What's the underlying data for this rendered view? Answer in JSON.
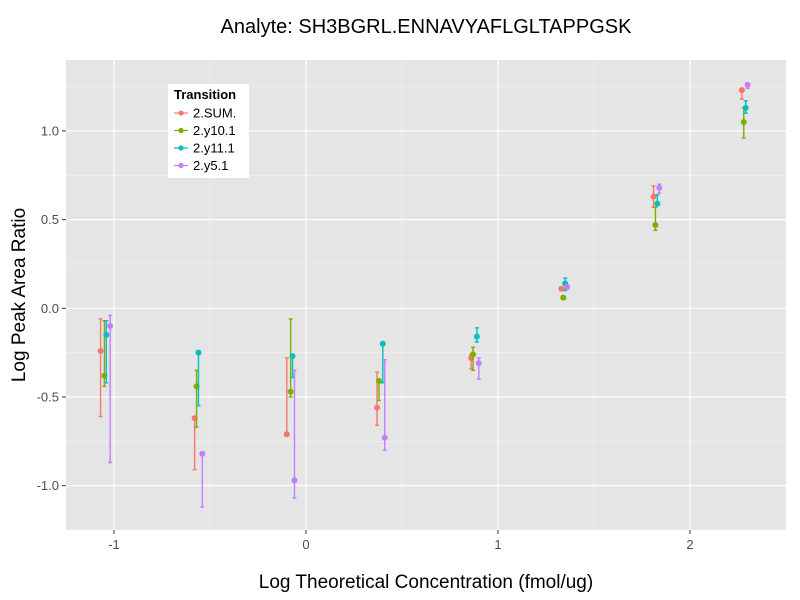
{
  "chart_data": {
    "type": "scatter",
    "title": "Analyte: SH3BGRL.ENNAVYAFLGLTAPPGSK",
    "xlabel": "Log Theoretical Concentration (fmol/ug)",
    "ylabel": "Log Peak Area Ratio",
    "xlim": [
      -1.25,
      2.5
    ],
    "ylim": [
      -1.25,
      1.4
    ],
    "x_ticks": [
      -1,
      0,
      1,
      2
    ],
    "x_tick_labels": [
      "-1",
      "0",
      "1",
      "2"
    ],
    "y_ticks": [
      -1.0,
      -0.5,
      0.0,
      0.5,
      1.0
    ],
    "y_tick_labels": [
      "-1.0",
      "-0.5",
      "0.0",
      "0.5",
      "1.0"
    ],
    "grid": true,
    "legend": {
      "title": "Transition",
      "placement": "top-left"
    },
    "error_bars": true,
    "series": [
      {
        "name": "2.SUM.",
        "color": "#F8766D",
        "points": [
          {
            "x": -1.07,
            "y": -0.24,
            "low": -0.61,
            "high": -0.06
          },
          {
            "x": -0.58,
            "y": -0.62,
            "low": -0.91,
            "high": -0.61
          },
          {
            "x": -0.1,
            "y": -0.71,
            "low": -0.72,
            "high": -0.28
          },
          {
            "x": 0.37,
            "y": -0.56,
            "low": -0.66,
            "high": -0.36
          },
          {
            "x": 0.86,
            "y": -0.28,
            "low": -0.34,
            "high": -0.26
          },
          {
            "x": 1.33,
            "y": 0.11,
            "low": 0.1,
            "high": 0.12
          },
          {
            "x": 1.81,
            "y": 0.63,
            "low": 0.57,
            "high": 0.69
          },
          {
            "x": 2.27,
            "y": 1.23,
            "low": 1.18,
            "high": 1.24
          }
        ]
      },
      {
        "name": "2.y10.1",
        "color": "#7CAE00",
        "points": [
          {
            "x": -1.05,
            "y": -0.38,
            "low": -0.44,
            "high": -0.07
          },
          {
            "x": -0.57,
            "y": -0.44,
            "low": -0.67,
            "high": -0.35
          },
          {
            "x": -0.08,
            "y": -0.47,
            "low": -0.5,
            "high": -0.06
          },
          {
            "x": 0.38,
            "y": -0.41,
            "low": -0.52,
            "high": -0.4
          },
          {
            "x": 0.87,
            "y": -0.26,
            "low": -0.35,
            "high": -0.22
          },
          {
            "x": 1.34,
            "y": 0.06,
            "low": 0.05,
            "high": 0.07
          },
          {
            "x": 1.82,
            "y": 0.47,
            "low": 0.44,
            "high": 0.57
          },
          {
            "x": 2.28,
            "y": 1.05,
            "low": 0.96,
            "high": 1.13
          }
        ]
      },
      {
        "name": "2.y11.1",
        "color": "#00BFC4",
        "points": [
          {
            "x": -1.04,
            "y": -0.15,
            "low": -0.42,
            "high": -0.07
          },
          {
            "x": -0.56,
            "y": -0.25,
            "low": -0.55,
            "high": -0.24
          },
          {
            "x": -0.07,
            "y": -0.27,
            "low": -0.39,
            "high": -0.26
          },
          {
            "x": 0.4,
            "y": -0.2,
            "low": -0.42,
            "high": -0.19
          },
          {
            "x": 0.89,
            "y": -0.16,
            "low": -0.19,
            "high": -0.11
          },
          {
            "x": 1.35,
            "y": 0.14,
            "low": 0.1,
            "high": 0.17
          },
          {
            "x": 1.83,
            "y": 0.59,
            "low": 0.58,
            "high": 0.64
          },
          {
            "x": 2.29,
            "y": 1.13,
            "low": 1.1,
            "high": 1.17
          }
        ]
      },
      {
        "name": "2.y5.1",
        "color": "#C77CFF",
        "points": [
          {
            "x": -1.02,
            "y": -0.1,
            "low": -0.87,
            "high": -0.04
          },
          {
            "x": -0.54,
            "y": -0.82,
            "low": -1.12,
            "high": -0.81
          },
          {
            "x": -0.06,
            "y": -0.97,
            "low": -1.07,
            "high": -0.35
          },
          {
            "x": 0.41,
            "y": -0.73,
            "low": -0.8,
            "high": -0.29
          },
          {
            "x": 0.9,
            "y": -0.31,
            "low": -0.4,
            "high": -0.28
          },
          {
            "x": 1.36,
            "y": 0.12,
            "low": 0.11,
            "high": 0.13
          },
          {
            "x": 1.84,
            "y": 0.68,
            "low": 0.65,
            "high": 0.7
          },
          {
            "x": 2.3,
            "y": 1.26,
            "low": 1.24,
            "high": 1.27
          }
        ]
      }
    ]
  }
}
